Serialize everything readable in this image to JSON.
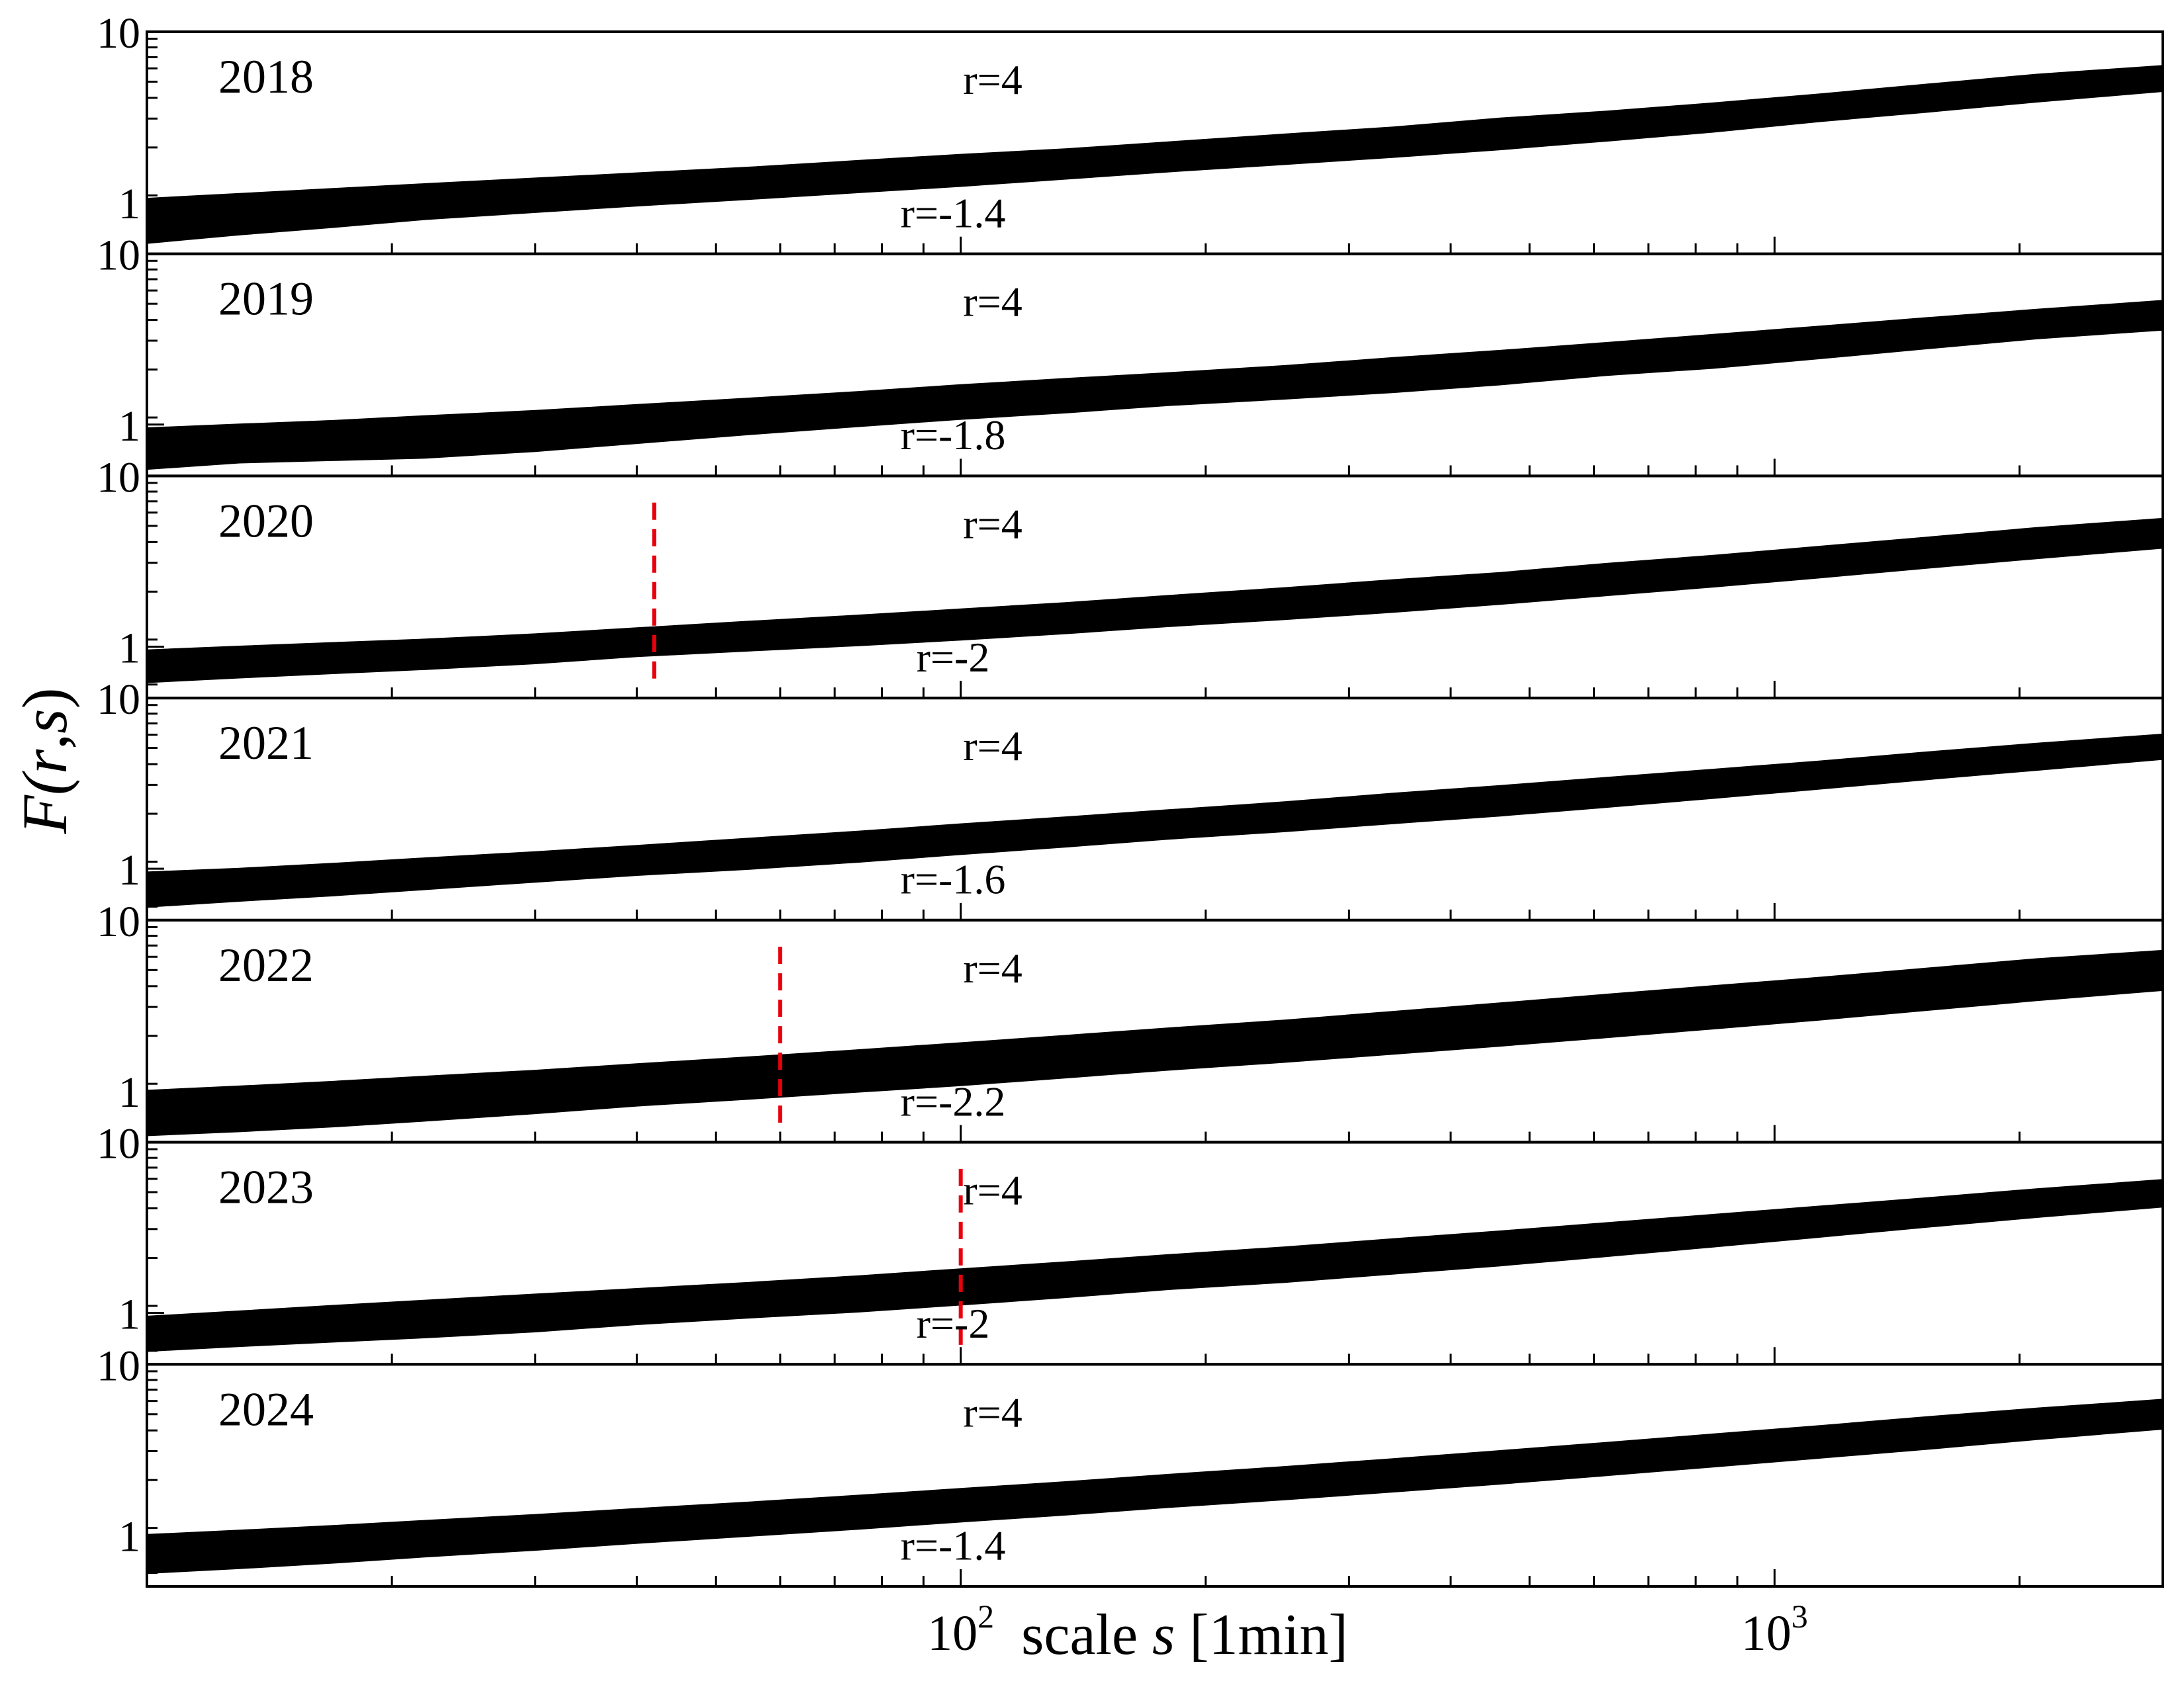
{
  "chart_data": {
    "type": "line",
    "xlabel_prefix": "scale ",
    "xlabel_var": "s",
    "xlabel_suffix": " [1min]",
    "ylabel_prefix": "F(",
    "ylabel_var1": "r",
    "ylabel_sep": ",",
    "ylabel_var2": "s",
    "ylabel_suffix": ")",
    "x_scale": "log",
    "y_scale": "log",
    "xlim": [
      10,
      3000
    ],
    "ylim": [
      0.5,
      10
    ],
    "x_ticks": [
      {
        "value": 100,
        "base": "10",
        "exp": "2"
      },
      {
        "value": 1000,
        "base": "10",
        "exp": "3"
      }
    ],
    "y_ticks": [
      {
        "value": 10,
        "label": "10"
      },
      {
        "value": 1,
        "label": "1"
      }
    ],
    "panels": [
      {
        "year": "2018",
        "r_high_label": "r=4",
        "r_low_label": "r=-1.4",
        "x": [
          10,
          13,
          17,
          22,
          30,
          40,
          55,
          75,
          100,
          135,
          180,
          250,
          340,
          460,
          620,
          840,
          1140,
          1540,
          2100,
          3000
        ],
        "upper": [
          1.05,
          1.12,
          1.2,
          1.28,
          1.38,
          1.48,
          1.6,
          1.75,
          1.9,
          2.05,
          2.25,
          2.5,
          2.75,
          3.1,
          3.4,
          3.8,
          4.3,
          4.9,
          5.6,
          6.3
        ],
        "lower": [
          0.58,
          0.65,
          0.72,
          0.8,
          0.88,
          0.96,
          1.05,
          1.15,
          1.25,
          1.38,
          1.52,
          1.68,
          1.85,
          2.05,
          2.3,
          2.6,
          3.0,
          3.4,
          3.9,
          4.5
        ]
      },
      {
        "year": "2019",
        "r_high_label": "r=4",
        "r_low_label": "r=-1.8",
        "x": [
          10,
          13,
          17,
          22,
          30,
          40,
          55,
          75,
          100,
          135,
          180,
          250,
          340,
          460,
          620,
          840,
          1140,
          1540,
          2100,
          3000
        ],
        "upper": [
          0.95,
          1.0,
          1.05,
          1.12,
          1.2,
          1.3,
          1.42,
          1.55,
          1.7,
          1.85,
          2.0,
          2.2,
          2.45,
          2.7,
          3.0,
          3.35,
          3.75,
          4.2,
          4.7,
          5.3
        ],
        "lower": [
          0.55,
          0.6,
          0.62,
          0.64,
          0.7,
          0.78,
          0.88,
          0.98,
          1.08,
          1.18,
          1.3,
          1.42,
          1.55,
          1.72,
          1.95,
          2.15,
          2.45,
          2.8,
          3.2,
          3.6
        ]
      },
      {
        "year": "2020",
        "r_high_label": "r=4",
        "r_low_label": "r=-2",
        "x": [
          10,
          13,
          17,
          22,
          30,
          40,
          55,
          75,
          100,
          135,
          180,
          250,
          340,
          460,
          620,
          840,
          1140,
          1540,
          2100,
          3000
        ],
        "upper": [
          0.95,
          1.0,
          1.05,
          1.1,
          1.18,
          1.28,
          1.4,
          1.52,
          1.65,
          1.8,
          1.98,
          2.2,
          2.45,
          2.7,
          3.05,
          3.4,
          3.85,
          4.35,
          4.95,
          5.6
        ],
        "lower": [
          0.62,
          0.66,
          0.7,
          0.74,
          0.8,
          0.88,
          0.95,
          1.02,
          1.1,
          1.2,
          1.32,
          1.45,
          1.6,
          1.78,
          2.0,
          2.25,
          2.55,
          2.9,
          3.3,
          3.8
        ],
        "cutoff_x": 42
      },
      {
        "year": "2021",
        "r_high_label": "r=4",
        "r_low_label": "r=-1.6",
        "x": [
          10,
          13,
          17,
          22,
          30,
          40,
          55,
          75,
          100,
          135,
          180,
          250,
          340,
          460,
          620,
          840,
          1140,
          1540,
          2100,
          3000
        ],
        "upper": [
          0.95,
          1.0,
          1.07,
          1.15,
          1.25,
          1.36,
          1.5,
          1.65,
          1.82,
          2.0,
          2.2,
          2.45,
          2.75,
          3.05,
          3.4,
          3.8,
          4.25,
          4.8,
          5.4,
          6.1
        ],
        "lower": [
          0.6,
          0.65,
          0.7,
          0.76,
          0.84,
          0.92,
          1.0,
          1.1,
          1.22,
          1.35,
          1.5,
          1.66,
          1.85,
          2.05,
          2.3,
          2.6,
          2.95,
          3.35,
          3.8,
          4.4
        ]
      },
      {
        "year": "2022",
        "r_high_label": "r=4",
        "r_low_label": "r=-2.2",
        "x": [
          10,
          13,
          17,
          22,
          30,
          40,
          55,
          75,
          100,
          135,
          180,
          250,
          340,
          460,
          620,
          840,
          1140,
          1540,
          2100,
          3000
        ],
        "upper": [
          1.0,
          1.06,
          1.13,
          1.21,
          1.31,
          1.43,
          1.57,
          1.73,
          1.9,
          2.1,
          2.32,
          2.58,
          2.9,
          3.25,
          3.65,
          4.1,
          4.6,
          5.2,
          5.9,
          6.6
        ],
        "lower": [
          0.55,
          0.58,
          0.62,
          0.67,
          0.74,
          0.82,
          0.9,
          0.99,
          1.08,
          1.2,
          1.33,
          1.48,
          1.65,
          1.84,
          2.06,
          2.32,
          2.62,
          2.98,
          3.4,
          3.9
        ],
        "cutoff_x": 60
      },
      {
        "year": "2023",
        "r_high_label": "r=4",
        "r_low_label": "r=-2",
        "x": [
          10,
          13,
          17,
          22,
          30,
          40,
          55,
          75,
          100,
          135,
          180,
          250,
          340,
          460,
          620,
          840,
          1140,
          1540,
          2100,
          3000
        ],
        "upper": [
          0.95,
          1.02,
          1.1,
          1.18,
          1.28,
          1.38,
          1.5,
          1.64,
          1.8,
          1.98,
          2.18,
          2.42,
          2.7,
          3.0,
          3.35,
          3.75,
          4.2,
          4.7,
          5.3,
          6.0
        ],
        "lower": [
          0.6,
          0.64,
          0.68,
          0.72,
          0.78,
          0.86,
          0.94,
          1.02,
          1.12,
          1.24,
          1.38,
          1.52,
          1.7,
          1.9,
          2.15,
          2.45,
          2.8,
          3.2,
          3.65,
          4.2
        ],
        "cutoff_x": 100
      },
      {
        "year": "2024",
        "r_high_label": "r=4",
        "r_low_label": "r=-1.4",
        "x": [
          10,
          13,
          17,
          22,
          30,
          40,
          55,
          75,
          100,
          135,
          180,
          250,
          340,
          460,
          620,
          840,
          1140,
          1540,
          2100,
          3000
        ],
        "upper": [
          1.0,
          1.06,
          1.13,
          1.21,
          1.31,
          1.42,
          1.55,
          1.7,
          1.86,
          2.04,
          2.25,
          2.5,
          2.78,
          3.1,
          3.46,
          3.88,
          4.35,
          4.9,
          5.5,
          6.2
        ],
        "lower": [
          0.6,
          0.64,
          0.69,
          0.75,
          0.82,
          0.9,
          0.99,
          1.09,
          1.2,
          1.32,
          1.46,
          1.62,
          1.8,
          2.0,
          2.24,
          2.52,
          2.84,
          3.2,
          3.65,
          4.2
        ]
      }
    ]
  }
}
